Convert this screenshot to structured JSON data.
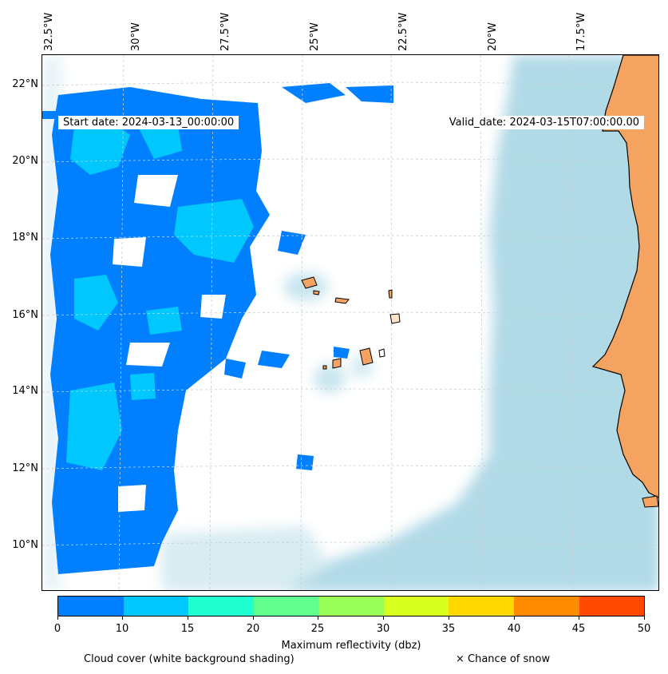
{
  "map": {
    "start_date": "Start date: 2024-03-13_00:00:00",
    "valid_date": "Valid_date: 2024-03-15T07:00:00.00",
    "longitude_labels": [
      "32.5°W",
      "30°W",
      "27.5°W",
      "25°W",
      "22.5°W",
      "20°W",
      "17.5°W"
    ],
    "latitude_labels": [
      "22°N",
      "20°N",
      "18°N",
      "16°N",
      "14°N",
      "12°N",
      "10°N"
    ],
    "colors": {
      "land": "#f4a460",
      "cloud": "#add8e6",
      "grid": "#cccccc"
    }
  },
  "colorbar": {
    "title": "Maximum reflectivity (dbz)",
    "ticks": [
      "0",
      "10",
      "15",
      "20",
      "25",
      "30",
      "35",
      "40",
      "45",
      "50"
    ],
    "colors": [
      "#0080ff",
      "#00c8ff",
      "#20ffd0",
      "#60ff90",
      "#98ff58",
      "#d8ff20",
      "#ffd800",
      "#ff8c00",
      "#ff4800"
    ]
  },
  "legend": {
    "cloud_cover": "Cloud cover (white background shading)",
    "snow": "× Chance of snow"
  }
}
